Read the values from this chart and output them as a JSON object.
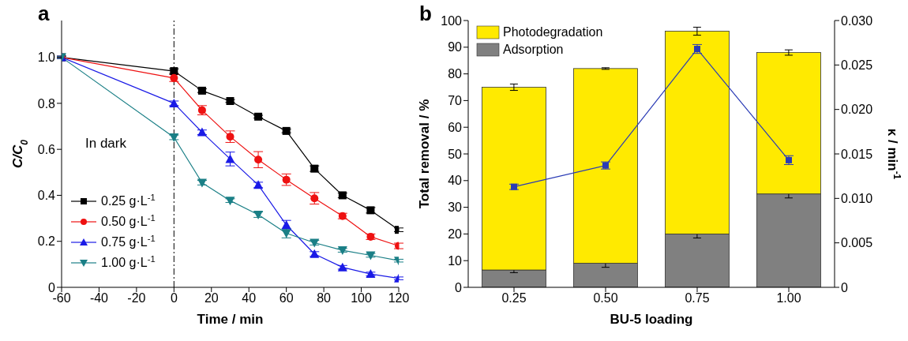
{
  "chart_data": [
    {
      "type": "line",
      "title": "a",
      "xlabel": "Time / min",
      "ylabel": "C/C$_{0}$",
      "x": [
        -60,
        0,
        15,
        30,
        45,
        60,
        75,
        90,
        105,
        120
      ],
      "series": [
        {
          "name": "0.25 g·L$^{-1}$",
          "color": "#000000",
          "marker": "square",
          "values": [
            1.0,
            0.94,
            0.855,
            0.81,
            0.742,
            0.68,
            0.516,
            0.4,
            0.335,
            0.25
          ],
          "errors": [
            0.005,
            0.01,
            0.008,
            0.006,
            0.006,
            0.008,
            0.012,
            0.01,
            0.012,
            0.008
          ]
        },
        {
          "name": "0.50 g·L$^{-1}$",
          "color": "#ee1111",
          "marker": "circle",
          "values": [
            1.0,
            0.91,
            0.77,
            0.655,
            0.555,
            0.468,
            0.387,
            0.31,
            0.22,
            0.18
          ],
          "errors": [
            0.005,
            0.015,
            0.02,
            0.025,
            0.035,
            0.025,
            0.025,
            0.012,
            0.012,
            0.012
          ]
        },
        {
          "name": "0.75 g·L$^{-1}$",
          "color": "#1a1ae6",
          "marker": "triangle",
          "values": [
            1.0,
            0.8,
            0.674,
            0.558,
            0.445,
            0.271,
            0.145,
            0.087,
            0.058,
            0.039
          ],
          "errors": [
            0.005,
            0.01,
            0.01,
            0.03,
            0.012,
            0.02,
            0.01,
            0.008,
            0.008,
            0.006
          ]
        },
        {
          "name": "1.00 g·L$^{-1}$",
          "color": "#1a7f86",
          "marker": "triangle-down",
          "values": [
            1.0,
            0.652,
            0.455,
            0.377,
            0.316,
            0.235,
            0.194,
            0.161,
            0.139,
            0.116
          ],
          "errors": [
            0.005,
            0.01,
            0.01,
            0.008,
            0.012,
            0.02,
            0.01,
            0.008,
            0.008,
            0.006
          ]
        }
      ],
      "xlim": [
        -60,
        120
      ],
      "xticks": [
        -60,
        -40,
        -20,
        0,
        20,
        40,
        60,
        80,
        100,
        120
      ],
      "ylim": [
        0,
        1.16
      ],
      "yticks": [
        0,
        {
          "value": 0.2,
          "label": "0.2"
        },
        {
          "value": 0.4,
          "label": "0.4"
        },
        {
          "value": 0.6,
          "label": "0.6"
        },
        {
          "value": 0.8,
          "label": "0.8"
        },
        {
          "value": 1.0,
          "label": "1.0"
        }
      ],
      "ref_lines": [
        {
          "axis": "x",
          "value": 0,
          "color": "#000000",
          "line_style": "dash-dot"
        }
      ],
      "annotations": [
        "In dark"
      ],
      "legend": "bottom left",
      "grid": false
    },
    {
      "type": "bar",
      "title": "b",
      "xlabel": "BU-5 loading",
      "ylabel": "Total removal / %",
      "y2label": "κ / min$^{-1}$",
      "categories": [
        "0.25",
        "0.50",
        "0.75",
        "1.00"
      ],
      "stacked": true,
      "series": [
        {
          "name": "Adsorption",
          "color": "#808080",
          "values": [
            6.5,
            9,
            20,
            35
          ],
          "errors": [
            1,
            1.5,
            1.5,
            1.5
          ]
        },
        {
          "name": "Photodegradation",
          "color": "#ffea00",
          "values": [
            68.5,
            73,
            76,
            53
          ],
          "errors": [
            1.2,
            0.3,
            1.5,
            1
          ]
        },
        {
          "type": "line",
          "axis": "y2",
          "color": "#2a3bb5",
          "marker": "square",
          "values": [
            0.0113,
            0.0137,
            0.0268,
            0.0143
          ],
          "errors": [
            0.0003,
            0.0004,
            0.0005,
            0.0005
          ]
        }
      ],
      "ylim": [
        0,
        100
      ],
      "yticks": [
        0,
        10,
        20,
        30,
        40,
        50,
        60,
        70,
        80,
        90,
        100
      ],
      "y2lim": [
        0,
        0.03
      ],
      "y2ticks": [
        0,
        {
          "value": 0.005,
          "label": "0.005"
        },
        {
          "value": 0.01,
          "label": "0.010"
        },
        {
          "value": 0.015,
          "label": "0.015"
        },
        {
          "value": 0.02,
          "label": "0.020"
        },
        {
          "value": 0.025,
          "label": "0.025"
        },
        {
          "value": 0.03,
          "label": "0.030"
        }
      ],
      "legend": "top left",
      "grid": false
    }
  ]
}
